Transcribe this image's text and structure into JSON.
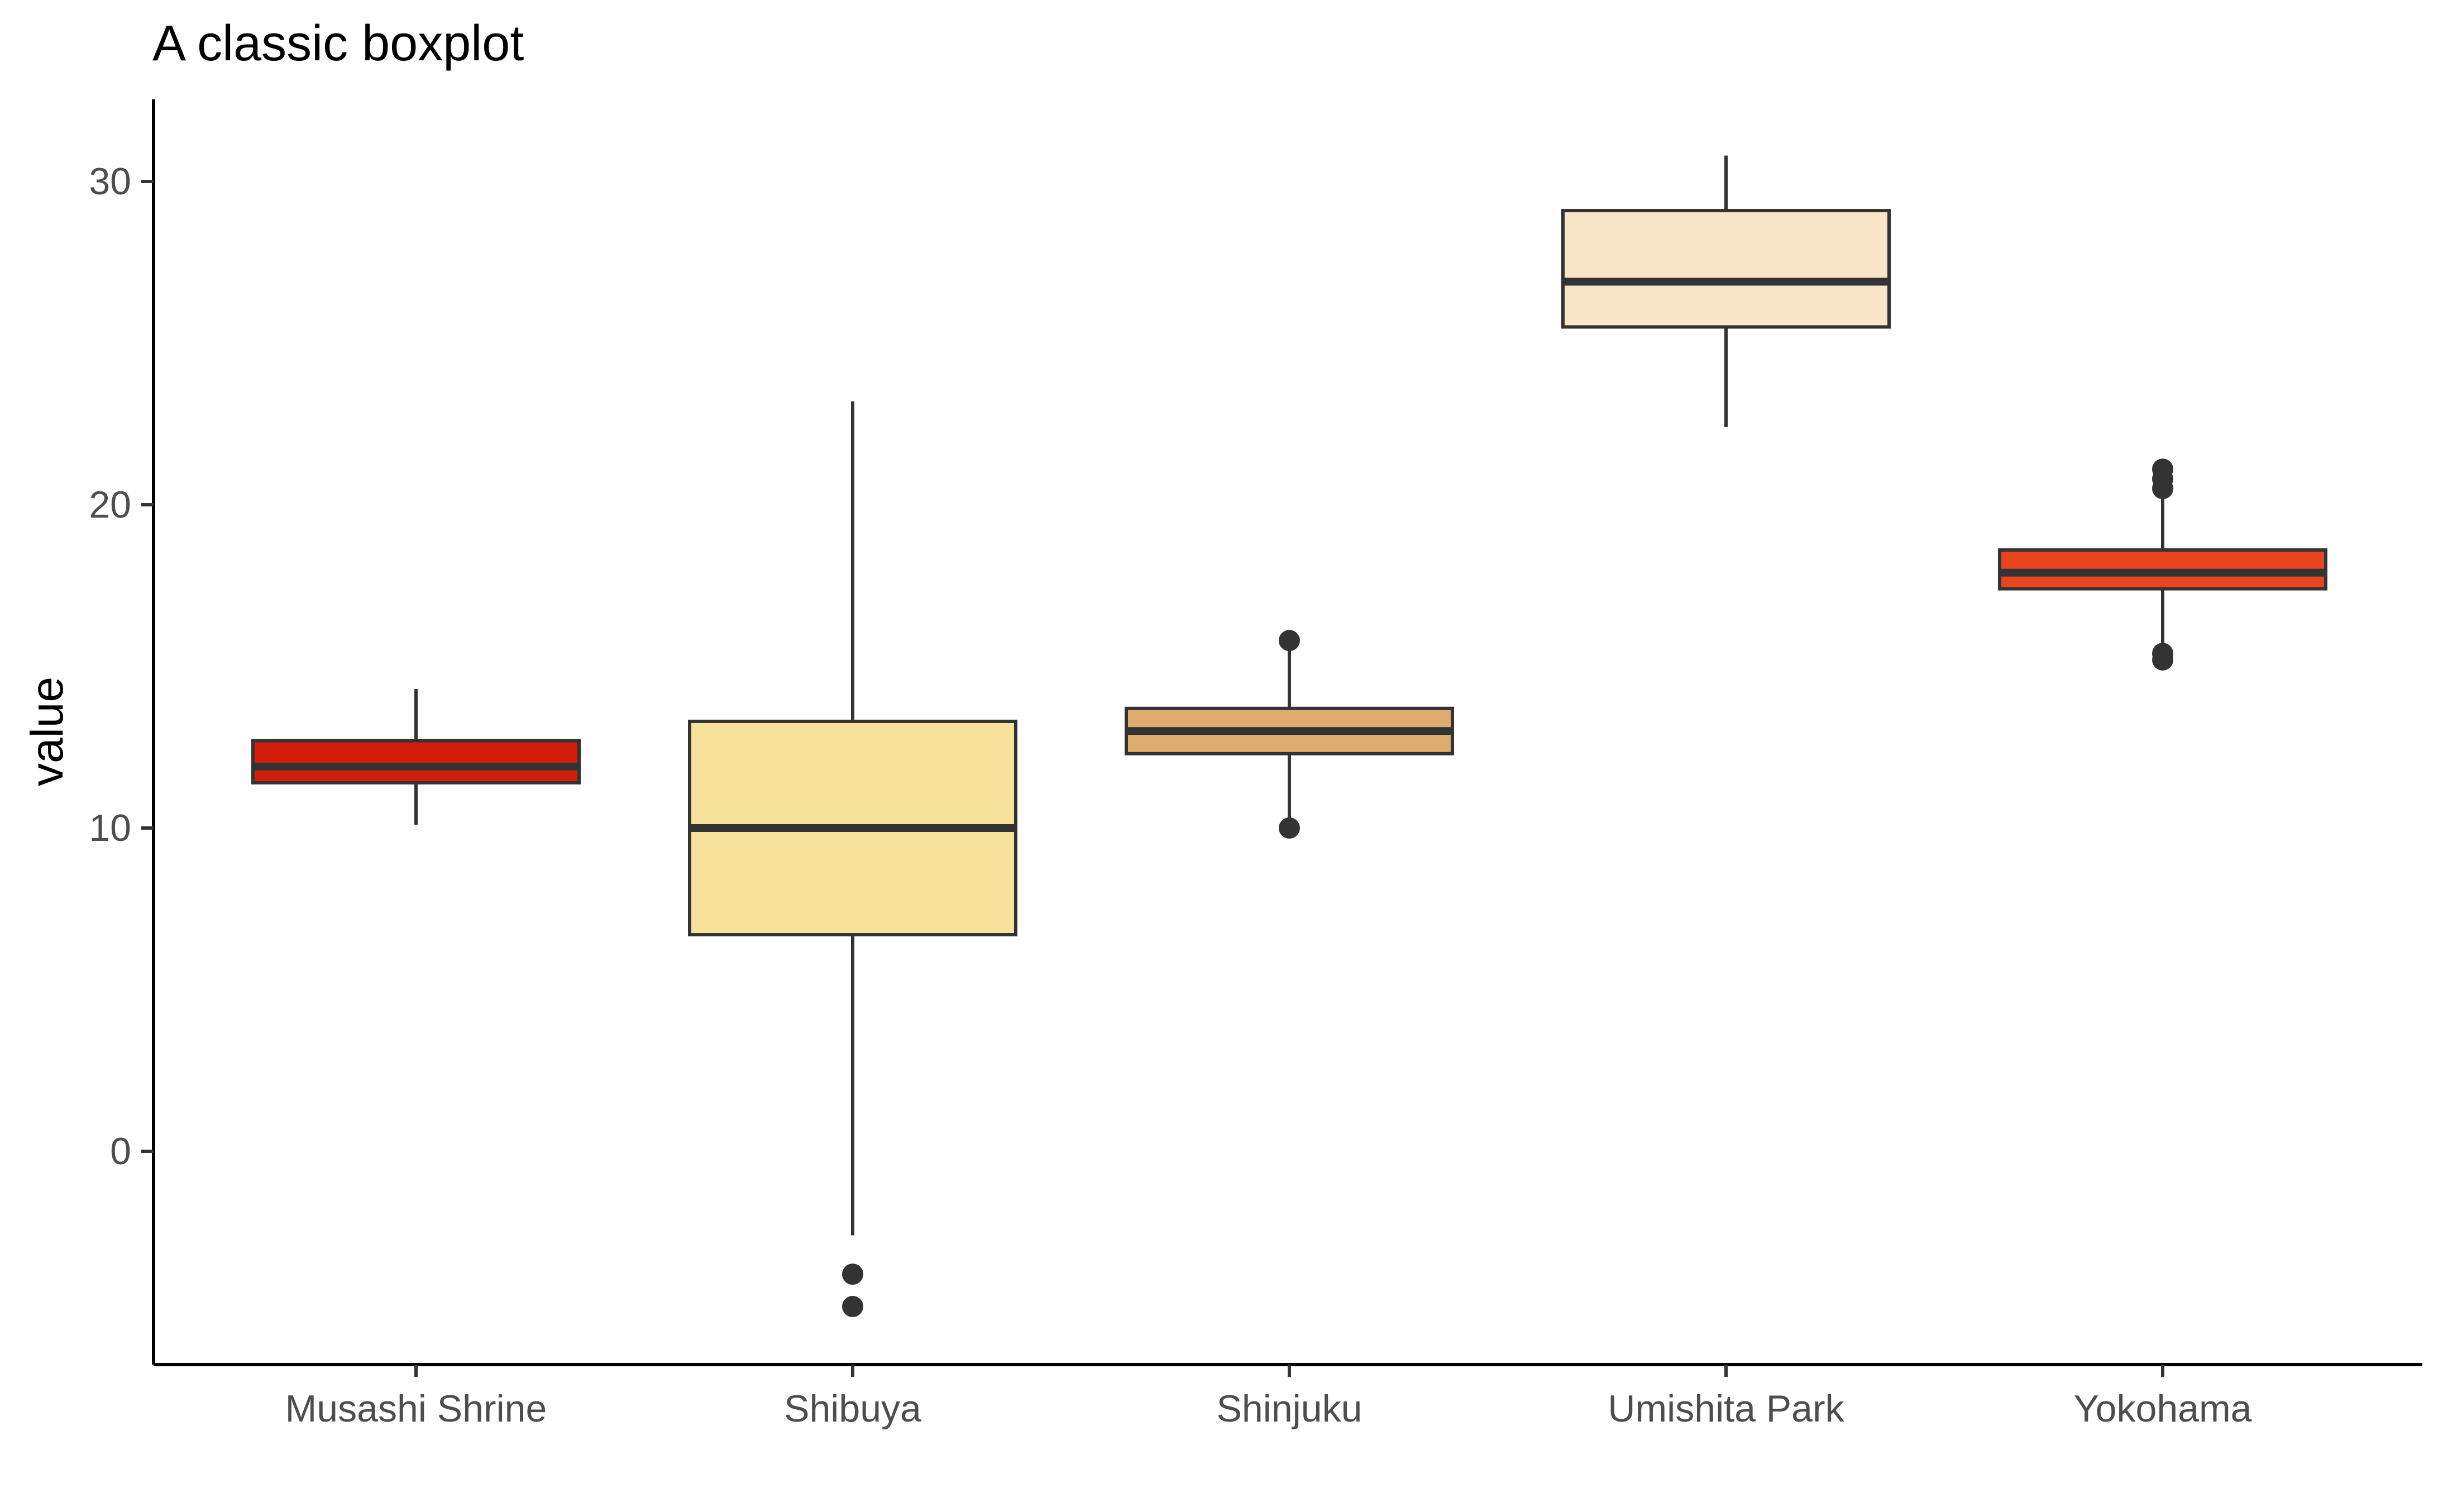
{
  "chart_data": {
    "type": "boxplot",
    "title": "A classic boxplot",
    "xlabel": "",
    "ylabel": "value",
    "ylim": [
      -6.6,
      32.5
    ],
    "yticks": [
      0,
      10,
      20,
      30
    ],
    "grid": false,
    "legend": "none",
    "categories": [
      "Musashi Shrine",
      "Shibuya",
      "Shinjuku",
      "Umishita Park",
      "Yokohama"
    ],
    "boxes": [
      {
        "category": "Musashi Shrine",
        "whisker_low": 10.1,
        "q1": 11.4,
        "median": 11.9,
        "q3": 12.7,
        "whisker_high": 14.3,
        "outliers": [],
        "fill": "#d41e0d"
      },
      {
        "category": "Shibuya",
        "whisker_low": -2.6,
        "q1": 6.7,
        "median": 10.0,
        "q3": 13.3,
        "whisker_high": 23.2,
        "outliers": [
          -3.8,
          -4.8
        ],
        "fill": "#f6e29b"
      },
      {
        "category": "Shinjuku",
        "whisker_low": 10.1,
        "q1": 12.3,
        "median": 13.0,
        "q3": 13.7,
        "whisker_high": 15.6,
        "outliers": [
          15.8,
          10.0
        ],
        "fill": "#deac6e"
      },
      {
        "category": "Umishita Park",
        "whisker_low": 22.4,
        "q1": 25.5,
        "median": 26.9,
        "q3": 29.1,
        "whisker_high": 30.8,
        "outliers": [],
        "fill": "#f9e5c7"
      },
      {
        "category": "Yokohama",
        "whisker_low": 15.5,
        "q1": 17.4,
        "median": 17.9,
        "q3": 18.6,
        "whisker_high": 20.2,
        "outliers": [
          20.5,
          20.8,
          21.1,
          15.4,
          15.2
        ],
        "fill": "#e8441f"
      }
    ]
  }
}
